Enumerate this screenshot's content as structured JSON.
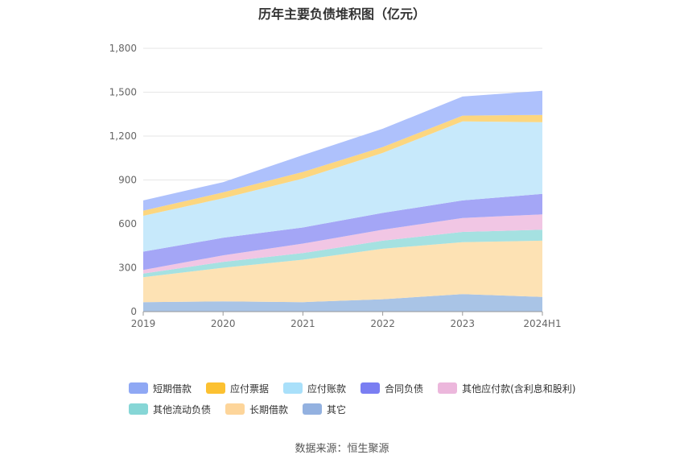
{
  "chart_data": {
    "type": "area",
    "title": "历年主要负债堆积图（亿元）",
    "categories": [
      "2019",
      "2020",
      "2021",
      "2022",
      "2023",
      "2024H1"
    ],
    "ylim": [
      0,
      1800
    ],
    "yticks": [
      0,
      300,
      600,
      900,
      1200,
      1500,
      1800
    ],
    "ytick_labels": [
      "0",
      "300",
      "600",
      "900",
      "1,200",
      "1,500",
      "1,800"
    ],
    "grid": true,
    "legend_position": "bottom",
    "series": [
      {
        "name": "其它",
        "color": "#a9c4e6",
        "values": [
          65,
          70,
          65,
          85,
          120,
          100
        ]
      },
      {
        "name": "长期借款",
        "color": "#fde2b4",
        "values": [
          170,
          230,
          290,
          345,
          355,
          385
        ]
      },
      {
        "name": "其他流动负债",
        "color": "#a5e1e1",
        "values": [
          25,
          40,
          45,
          55,
          70,
          75
        ]
      },
      {
        "name": "其他应付款(含利息和股利)",
        "color": "#f1c6e4",
        "values": [
          25,
          45,
          65,
          75,
          95,
          105
        ]
      },
      {
        "name": "合同负债",
        "color": "#a4a6f6",
        "values": [
          125,
          120,
          110,
          115,
          120,
          140
        ]
      },
      {
        "name": "应付账款",
        "color": "#c7e9fb",
        "values": [
          245,
          270,
          335,
          410,
          540,
          490
        ]
      },
      {
        "name": "应付票据",
        "color": "#fcd67f",
        "values": [
          35,
          40,
          45,
          40,
          40,
          50
        ]
      },
      {
        "name": "短期借款",
        "color": "#aec1fc",
        "values": [
          70,
          70,
          115,
          125,
          130,
          165
        ]
      }
    ]
  },
  "legend": {
    "row1": [
      {
        "label": "短期借款",
        "color": "#8fa8f4"
      },
      {
        "label": "应付票据",
        "color": "#fcc131"
      },
      {
        "label": "应付账款",
        "color": "#a9e0fa"
      },
      {
        "label": "合同负债",
        "color": "#7a7ef2"
      },
      {
        "label": "其他应付款(含利息和股利)",
        "color": "#ecb7dc"
      }
    ],
    "row2": [
      {
        "label": "其他流动负债",
        "color": "#86d6d6"
      },
      {
        "label": "长期借款",
        "color": "#fdd59a"
      },
      {
        "label": "其它",
        "color": "#93b1e0"
      }
    ]
  },
  "source": "数据来源：恒生聚源"
}
